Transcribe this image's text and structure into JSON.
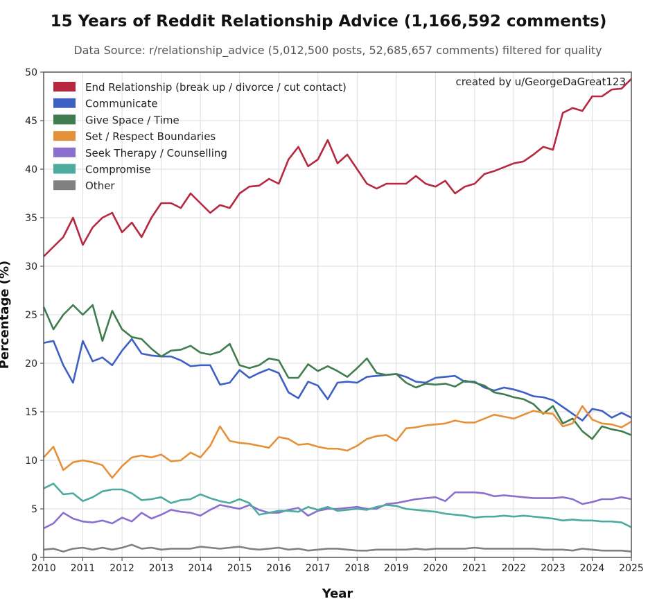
{
  "chart_data": {
    "type": "line",
    "title": "15 Years of Reddit Relationship Advice (1,166,592 comments)",
    "subtitle": "Data Source: r/relationship_advice (5,012,500 posts, 52,685,657 comments) filtered for quality",
    "annotation": "created by u/GeorgeDaGreat123",
    "xlabel": "Year",
    "ylabel": "Percentage (%)",
    "xlim": [
      2010,
      2025
    ],
    "ylim": [
      0,
      50
    ],
    "xticks": [
      "2010",
      "2011",
      "2012",
      "2013",
      "2014",
      "2015",
      "2016",
      "2017",
      "2018",
      "2019",
      "2020",
      "2021",
      "2022",
      "2023",
      "2024",
      "2025"
    ],
    "yticks": [
      "0",
      "5",
      "10",
      "15",
      "20",
      "25",
      "30",
      "35",
      "40",
      "45",
      "50"
    ],
    "grid": true,
    "legend_position": "top-left",
    "x": [
      2010,
      2010.25,
      2010.5,
      2010.75,
      2011,
      2011.25,
      2011.5,
      2011.75,
      2012,
      2012.25,
      2012.5,
      2012.75,
      2013,
      2013.25,
      2013.5,
      2013.75,
      2014,
      2014.25,
      2014.5,
      2014.75,
      2015,
      2015.25,
      2015.5,
      2015.75,
      2016,
      2016.25,
      2016.5,
      2016.75,
      2017,
      2017.25,
      2017.5,
      2017.75,
      2018,
      2018.25,
      2018.5,
      2018.75,
      2019,
      2019.25,
      2019.5,
      2019.75,
      2020,
      2020.25,
      2020.5,
      2020.75,
      2021,
      2021.25,
      2021.5,
      2021.75,
      2022,
      2022.25,
      2022.5,
      2022.75,
      2023,
      2023.25,
      2023.5,
      2023.75,
      2024,
      2024.25,
      2024.5,
      2024.75,
      2025
    ],
    "series": [
      {
        "name": "End Relationship (break up / divorce / cut contact)",
        "color": "#b5283f",
        "values": [
          31.0,
          32.0,
          33.0,
          35.0,
          32.2,
          34.0,
          35.0,
          35.5,
          33.5,
          34.5,
          33.0,
          35.0,
          36.5,
          36.5,
          36.0,
          37.5,
          36.5,
          35.5,
          36.3,
          36.0,
          37.5,
          38.2,
          38.3,
          39.0,
          38.5,
          41.0,
          42.3,
          40.3,
          41.0,
          43.0,
          40.6,
          41.5,
          40.0,
          38.5,
          38.0,
          38.5,
          38.5,
          38.5,
          39.3,
          38.5,
          38.2,
          38.8,
          37.5,
          38.2,
          38.5,
          39.5,
          39.8,
          40.2,
          40.6,
          40.8,
          41.5,
          42.3,
          42.0,
          45.8,
          46.3,
          46.0,
          47.5,
          47.5,
          48.2,
          48.3,
          49.3
        ]
      },
      {
        "name": "Communicate",
        "color": "#3e5fc4",
        "values": [
          22.1,
          22.3,
          19.8,
          18.0,
          22.3,
          20.2,
          20.6,
          19.8,
          21.3,
          22.5,
          21.0,
          20.8,
          20.7,
          20.7,
          20.3,
          19.7,
          19.8,
          19.8,
          17.8,
          18.0,
          19.3,
          18.5,
          19.0,
          19.4,
          19.0,
          17.0,
          16.4,
          18.1,
          17.7,
          16.3,
          18.0,
          18.1,
          18.0,
          18.6,
          18.7,
          18.8,
          18.9,
          18.6,
          18.1,
          18.0,
          18.5,
          18.6,
          18.7,
          18.1,
          18.1,
          17.5,
          17.2,
          17.5,
          17.3,
          17.0,
          16.6,
          16.5,
          16.2,
          15.5,
          14.8,
          14.1,
          15.3,
          15.1,
          14.4,
          14.9,
          14.4
        ]
      },
      {
        "name": "Give Space / Time",
        "color": "#3f7d4f",
        "values": [
          25.8,
          23.5,
          25.0,
          26.0,
          25.0,
          26.0,
          22.3,
          25.4,
          23.5,
          22.7,
          22.5,
          21.5,
          20.7,
          21.3,
          21.4,
          21.8,
          21.1,
          20.9,
          21.2,
          22.0,
          19.8,
          19.5,
          19.8,
          20.5,
          20.3,
          18.5,
          18.5,
          19.9,
          19.2,
          19.7,
          19.2,
          18.6,
          19.5,
          20.5,
          19.0,
          18.8,
          18.9,
          18.0,
          17.5,
          17.9,
          17.8,
          17.9,
          17.6,
          18.2,
          18.0,
          17.7,
          17.0,
          16.8,
          16.5,
          16.3,
          15.8,
          14.8,
          15.6,
          13.8,
          14.3,
          13.0,
          12.2,
          13.5,
          13.2,
          13.0,
          12.6
        ]
      },
      {
        "name": "Set / Respect Boundaries",
        "color": "#e6913a",
        "values": [
          10.3,
          11.4,
          9.0,
          9.8,
          10.0,
          9.8,
          9.5,
          8.2,
          9.4,
          10.3,
          10.5,
          10.3,
          10.6,
          9.9,
          10.0,
          10.8,
          10.3,
          11.5,
          13.5,
          12.0,
          11.8,
          11.7,
          11.5,
          11.3,
          12.4,
          12.2,
          11.6,
          11.7,
          11.4,
          11.2,
          11.2,
          11.0,
          11.5,
          12.2,
          12.5,
          12.6,
          12.0,
          13.3,
          13.4,
          13.6,
          13.7,
          13.8,
          14.1,
          13.9,
          13.9,
          14.3,
          14.7,
          14.5,
          14.3,
          14.7,
          15.1,
          14.9,
          14.8,
          13.5,
          13.8,
          15.6,
          14.2,
          13.8,
          13.7,
          13.4,
          14.0
        ]
      },
      {
        "name": "Seek Therapy / Counselling",
        "color": "#8a6fcf",
        "values": [
          3.0,
          3.5,
          4.6,
          4.0,
          3.7,
          3.6,
          3.8,
          3.5,
          4.1,
          3.7,
          4.6,
          4.0,
          4.4,
          4.9,
          4.7,
          4.6,
          4.3,
          4.9,
          5.4,
          5.2,
          5.0,
          5.4,
          4.9,
          4.6,
          4.6,
          4.9,
          5.1,
          4.3,
          4.8,
          5.0,
          5.0,
          5.1,
          5.2,
          5.0,
          5.0,
          5.5,
          5.6,
          5.8,
          6.0,
          6.1,
          6.2,
          5.8,
          6.7,
          6.7,
          6.7,
          6.6,
          6.3,
          6.4,
          6.3,
          6.2,
          6.1,
          6.1,
          6.1,
          6.2,
          6.0,
          5.5,
          5.7,
          6.0,
          6.0,
          6.2,
          6.0
        ]
      },
      {
        "name": "Compromise",
        "color": "#4daa9e",
        "values": [
          7.1,
          7.6,
          6.5,
          6.6,
          5.8,
          6.2,
          6.8,
          7.0,
          7.0,
          6.6,
          5.9,
          6.0,
          6.2,
          5.6,
          5.9,
          6.0,
          6.5,
          6.1,
          5.8,
          5.6,
          6.0,
          5.6,
          4.4,
          4.6,
          4.8,
          4.8,
          4.7,
          5.2,
          4.9,
          5.2,
          4.8,
          4.9,
          5.0,
          4.9,
          5.2,
          5.4,
          5.3,
          5.0,
          4.9,
          4.8,
          4.7,
          4.5,
          4.4,
          4.3,
          4.1,
          4.2,
          4.2,
          4.3,
          4.2,
          4.3,
          4.2,
          4.1,
          4.0,
          3.8,
          3.9,
          3.8,
          3.8,
          3.7,
          3.7,
          3.6,
          3.1
        ]
      },
      {
        "name": "Other",
        "color": "#808080",
        "values": [
          0.8,
          0.9,
          0.6,
          0.9,
          1.0,
          0.8,
          1.0,
          0.8,
          1.0,
          1.3,
          0.9,
          1.0,
          0.8,
          0.9,
          0.9,
          0.9,
          1.1,
          1.0,
          0.9,
          1.0,
          1.1,
          0.9,
          0.8,
          0.9,
          1.0,
          0.8,
          0.9,
          0.7,
          0.8,
          0.9,
          0.9,
          0.8,
          0.7,
          0.7,
          0.8,
          0.8,
          0.8,
          0.8,
          0.9,
          0.8,
          0.9,
          0.9,
          0.9,
          0.9,
          1.0,
          0.9,
          0.9,
          0.9,
          0.9,
          0.9,
          0.9,
          0.8,
          0.8,
          0.8,
          0.7,
          0.9,
          0.8,
          0.7,
          0.7,
          0.7,
          0.6
        ]
      }
    ]
  }
}
